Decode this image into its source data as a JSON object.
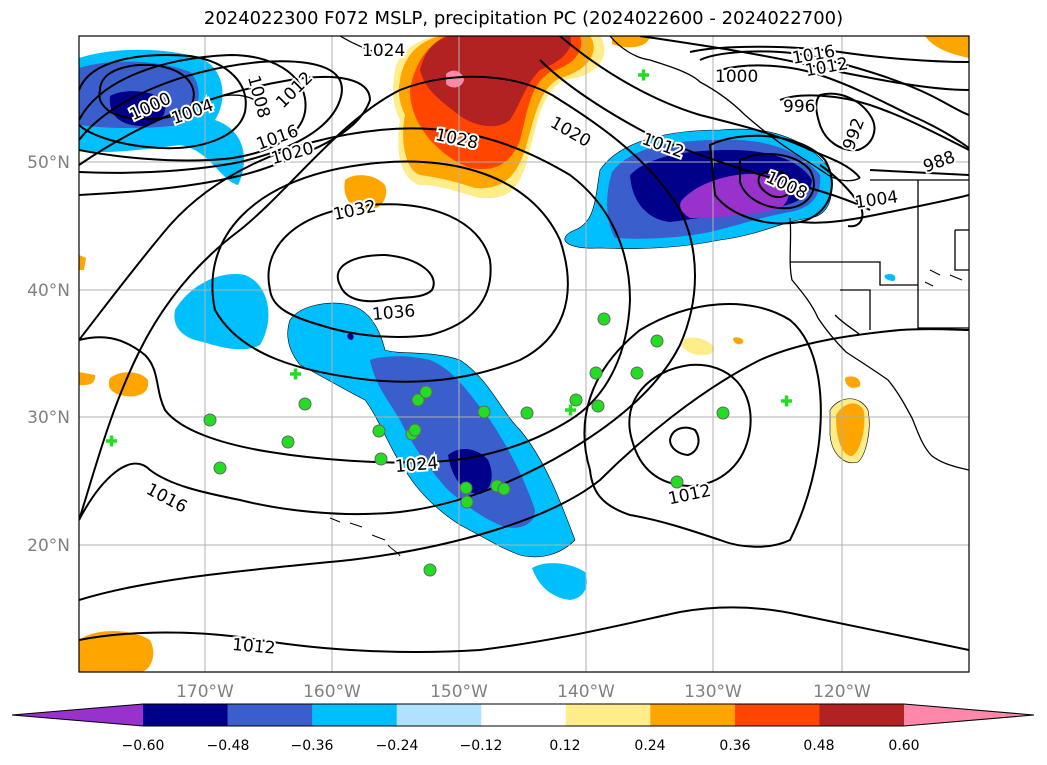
{
  "title": "2024022300 F072 MSLP, precipitation PC (2024022600 - 2024022700)",
  "lat_labels": [
    "50°N",
    "40°N",
    "30°N",
    "20°N"
  ],
  "lon_labels": [
    "170°W",
    "160°W",
    "150°W",
    "140°W",
    "130°W",
    "120°W"
  ],
  "colorbar": {
    "ticks": [
      "−0.60",
      "−0.48",
      "−0.36",
      "−0.24",
      "−0.12",
      "0.12",
      "0.24",
      "0.36",
      "0.48",
      "0.60"
    ],
    "colors": [
      "#9932CC",
      "#00008B",
      "#3A5FCD",
      "#00BFFF",
      "#B0E2FF",
      "#FFFFFF",
      "#FFEC8B",
      "#FFA500",
      "#FF4500",
      "#B22222",
      "#FF88AA"
    ]
  },
  "contour_labels": [
    "1024",
    "1000",
    "1004",
    "1008",
    "1012",
    "1016",
    "1020",
    "1028",
    "1020",
    "1016",
    "1012",
    "1000",
    "996",
    "992",
    "988",
    "1012",
    "1008",
    "1004",
    "1032",
    "1036",
    "1024",
    "1012",
    "1016",
    "1012"
  ]
}
